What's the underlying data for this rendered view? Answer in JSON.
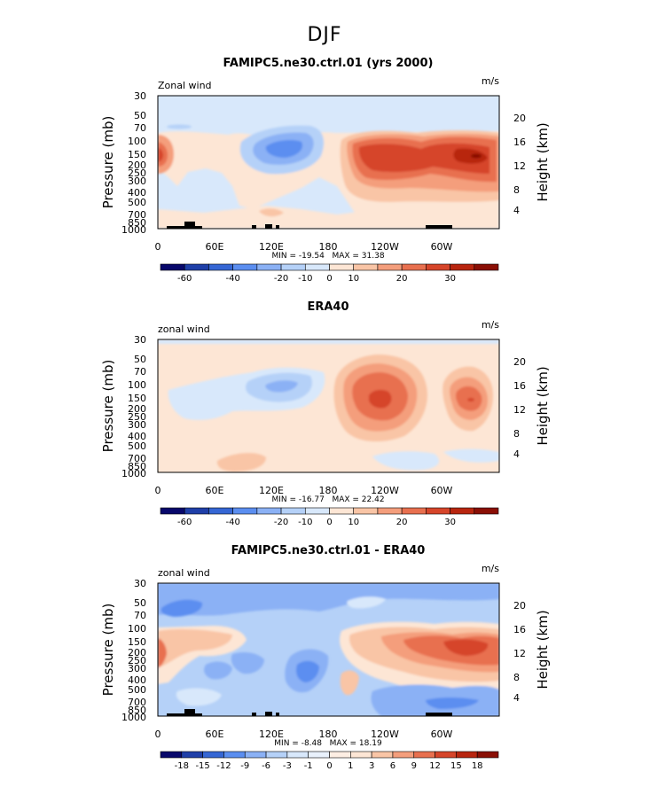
{
  "figure_title": "DJF",
  "chart_data": [
    {
      "type": "heatmap",
      "title": "FAMIPC5.ne30.ctrl.01 (yrs 2000)",
      "variable_label": "Zonal wind",
      "units": "m/s",
      "ylabel": "Pressure (mb)",
      "ylabel_right": "Height (km)",
      "x_ticks": [
        "0",
        "60E",
        "120E",
        "180",
        "120W",
        "60W"
      ],
      "y_ticks": [
        "30",
        "50",
        "70",
        "100",
        "150",
        "200",
        "250",
        "300",
        "400",
        "500",
        "700",
        "850",
        "1000"
      ],
      "y_ticks_right": [
        "20",
        "16",
        "12",
        "8",
        "4"
      ],
      "stats": "MIN = -19.54   MAX = 31.38",
      "colorbar_labels": [
        "-60",
        "-40",
        "-20",
        "-10",
        "0",
        "10",
        "20",
        "30"
      ]
    },
    {
      "type": "heatmap",
      "title": "ERA40",
      "variable_label": "zonal wind",
      "units": "m/s",
      "ylabel": "Pressure (mb)",
      "ylabel_right": "Height (km)",
      "x_ticks": [
        "0",
        "60E",
        "120E",
        "180",
        "120W",
        "60W"
      ],
      "y_ticks": [
        "30",
        "50",
        "70",
        "100",
        "150",
        "200",
        "250",
        "300",
        "400",
        "500",
        "700",
        "850",
        "1000"
      ],
      "y_ticks_right": [
        "20",
        "16",
        "12",
        "8",
        "4"
      ],
      "stats": "MIN = -16.77   MAX = 22.42",
      "colorbar_labels": [
        "-60",
        "-40",
        "-20",
        "-10",
        "0",
        "10",
        "20",
        "30"
      ]
    },
    {
      "type": "heatmap",
      "title": "FAMIPC5.ne30.ctrl.01 - ERA40",
      "variable_label": "zonal wind",
      "units": "m/s",
      "ylabel": "Pressure (mb)",
      "ylabel_right": "Height (km)",
      "x_ticks": [
        "0",
        "60E",
        "120E",
        "180",
        "120W",
        "60W"
      ],
      "y_ticks": [
        "30",
        "50",
        "70",
        "100",
        "150",
        "200",
        "250",
        "300",
        "400",
        "500",
        "700",
        "850",
        "1000"
      ],
      "y_ticks_right": [
        "20",
        "16",
        "12",
        "8",
        "4"
      ],
      "stats": "MIN = -8.48   MAX = 18.19",
      "colorbar_labels": [
        "-18",
        "-15",
        "-12",
        "-9",
        "-6",
        "-3",
        "-1",
        "0",
        "1",
        "3",
        "6",
        "9",
        "12",
        "15",
        "18"
      ]
    }
  ],
  "colors": {
    "scale": [
      "#08086b",
      "#1f3fa8",
      "#3566d4",
      "#5b8ef0",
      "#8bb1f5",
      "#b5d1f8",
      "#d8e8fb",
      "#fde6d5",
      "#f9c5a6",
      "#f49e7c",
      "#e8704f",
      "#d6452a",
      "#b8250f",
      "#8a0f05"
    ],
    "topography": "#000000"
  }
}
